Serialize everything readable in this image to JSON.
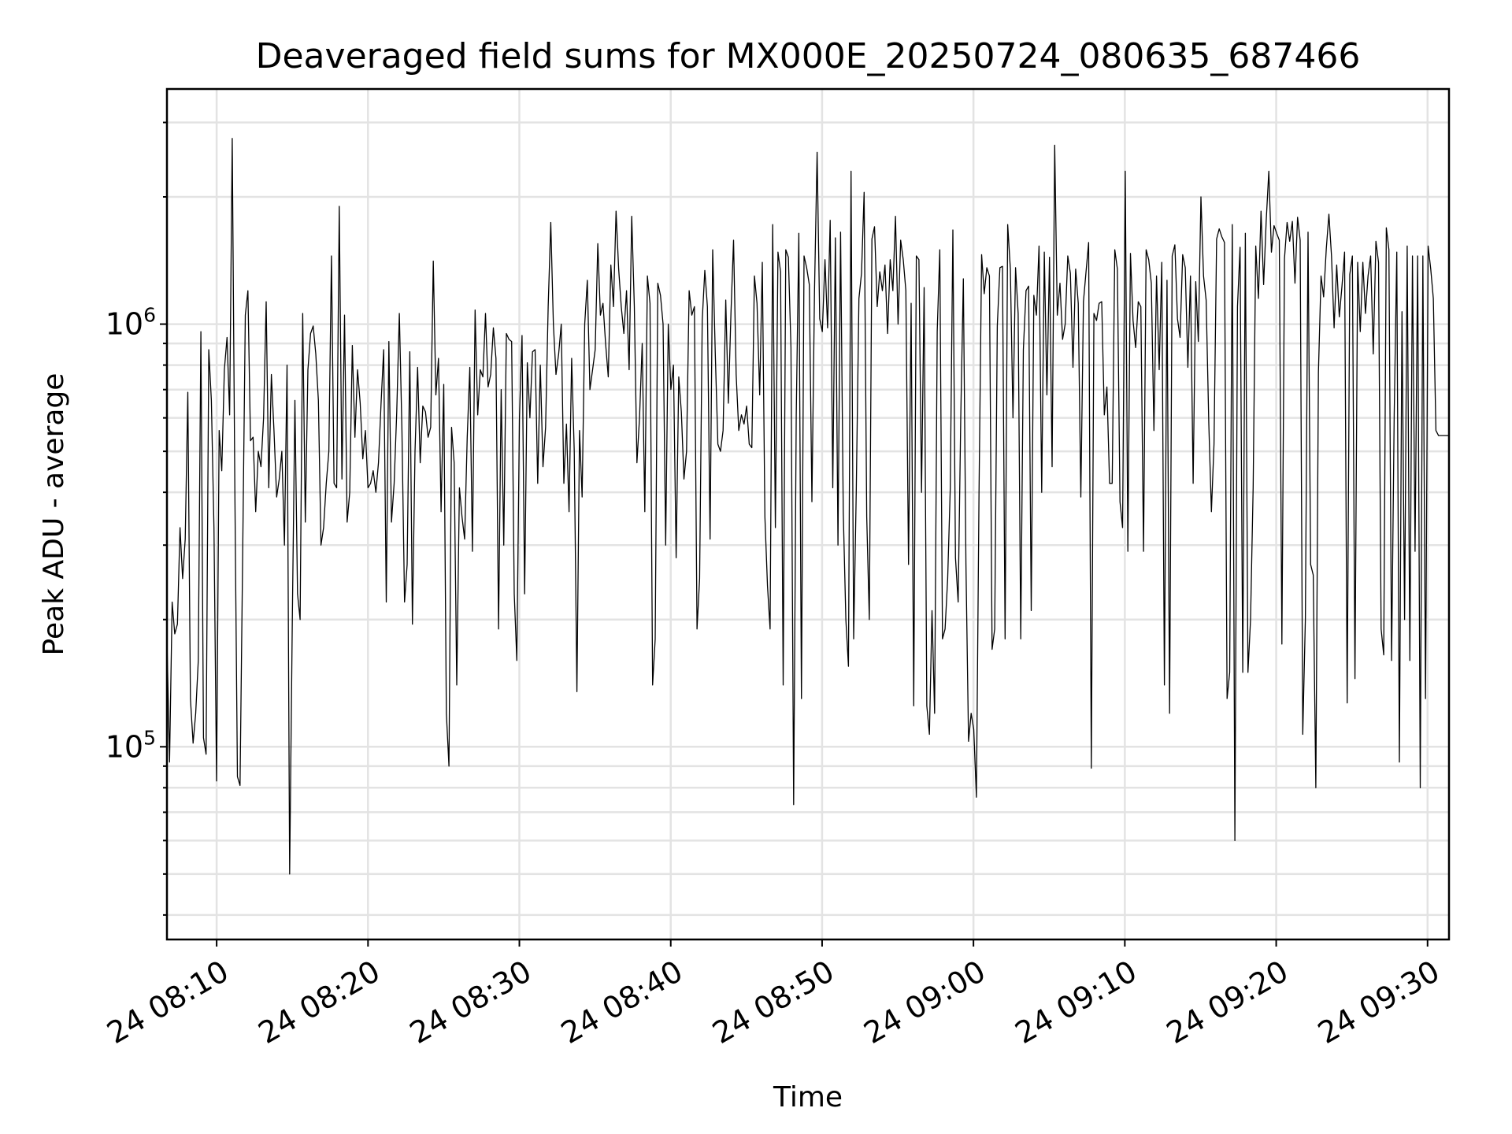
{
  "chart_data": {
    "type": "line",
    "title": "Deaveraged field sums for MX000E_20250724_080635_687466",
    "xlabel": "Time",
    "ylabel": "Peak ADU - average",
    "yscale": "log",
    "ylim": [
      35000,
      3600000
    ],
    "xlim": [
      "2025-07-24 08:06:43",
      "2025-07-24 09:31:25"
    ],
    "x_ticks": [
      {
        "t": "2025-07-24 08:10",
        "label": "24 08:10"
      },
      {
        "t": "2025-07-24 08:20",
        "label": "24 08:20"
      },
      {
        "t": "2025-07-24 08:30",
        "label": "24 08:30"
      },
      {
        "t": "2025-07-24 08:40",
        "label": "24 08:40"
      },
      {
        "t": "2025-07-24 08:50",
        "label": "24 08:50"
      },
      {
        "t": "2025-07-24 09:00",
        "label": "24 09:00"
      },
      {
        "t": "2025-07-24 09:10",
        "label": "24 09:10"
      },
      {
        "t": "2025-07-24 09:20",
        "label": "24 09:20"
      },
      {
        "t": "2025-07-24 09:30",
        "label": "24 09:30"
      }
    ],
    "y_ticks": [
      {
        "value": 100000,
        "base": "10",
        "exp": "5"
      },
      {
        "value": 1000000,
        "base": "10",
        "exp": "6"
      }
    ],
    "grid": true,
    "line_color": "#000000",
    "series": [
      {
        "x_start": "2025-07-24 08:06:43",
        "x_end": "2025-07-24 09:31:25",
        "values": [
          180000,
          92000,
          220000,
          185000,
          195000,
          330000,
          250000,
          310000,
          690000,
          130000,
          102000,
          120000,
          160000,
          960000,
          105000,
          96000,
          870000,
          660000,
          330000,
          83000,
          560000,
          450000,
          780000,
          930000,
          610000,
          2750000,
          410000,
          85000,
          81000,
          290000,
          1050000,
          1200000,
          530000,
          540000,
          360000,
          500000,
          460000,
          600000,
          1130000,
          410000,
          760000,
          560000,
          390000,
          430000,
          500000,
          300000,
          800000,
          50000,
          200000,
          660000,
          230000,
          200000,
          1060000,
          340000,
          780000,
          950000,
          990000,
          850000,
          660000,
          300000,
          330000,
          420000,
          500000,
          1450000,
          420000,
          410000,
          1900000,
          430000,
          1050000,
          340000,
          400000,
          890000,
          540000,
          780000,
          650000,
          480000,
          560000,
          410000,
          420000,
          450000,
          400000,
          470000,
          650000,
          870000,
          220000,
          910000,
          340000,
          420000,
          620000,
          1060000,
          560000,
          220000,
          270000,
          860000,
          195000,
          500000,
          790000,
          470000,
          640000,
          620000,
          540000,
          570000,
          1410000,
          680000,
          830000,
          360000,
          720000,
          120000,
          90000,
          570000,
          470000,
          140000,
          410000,
          350000,
          310000,
          540000,
          790000,
          290000,
          1080000,
          610000,
          780000,
          750000,
          1060000,
          710000,
          760000,
          980000,
          830000,
          190000,
          700000,
          300000,
          950000,
          920000,
          910000,
          230000,
          160000,
          600000,
          940000,
          230000,
          810000,
          600000,
          860000,
          870000,
          420000,
          800000,
          460000,
          570000,
          1100000,
          1740000,
          1000000,
          760000,
          850000,
          1000000,
          420000,
          580000,
          360000,
          830000,
          500000,
          135000,
          560000,
          390000,
          1000000,
          1270000,
          700000,
          780000,
          870000,
          1550000,
          1050000,
          1120000,
          900000,
          750000,
          1380000,
          1100000,
          1850000,
          1350000,
          1100000,
          950000,
          1200000,
          780000,
          1800000,
          1100000,
          470000,
          600000,
          900000,
          360000,
          1300000,
          1120000,
          140000,
          180000,
          1250000,
          1170000,
          1000000,
          300000,
          1000000,
          700000,
          800000,
          280000,
          750000,
          620000,
          430000,
          500000,
          1200000,
          1050000,
          1100000,
          190000,
          250000,
          1020000,
          1340000,
          1100000,
          310000,
          1500000,
          850000,
          520000,
          500000,
          560000,
          1140000,
          650000,
          1060000,
          1580000,
          760000,
          560000,
          610000,
          580000,
          640000,
          520000,
          510000,
          1300000,
          1120000,
          680000,
          1400000,
          350000,
          240000,
          190000,
          1720000,
          330000,
          1480000,
          1330000,
          140000,
          1500000,
          1440000,
          880000,
          73000,
          610000,
          1640000,
          130000,
          1450000,
          1360000,
          1240000,
          380000,
          1200000,
          2550000,
          1030000,
          960000,
          1420000,
          980000,
          1760000,
          410000,
          1600000,
          300000,
          1650000,
          360000,
          200000,
          155000,
          2300000,
          180000,
          400000,
          1150000,
          1320000,
          2050000,
          350000,
          200000,
          1590000,
          1700000,
          1100000,
          1330000,
          1200000,
          1380000,
          950000,
          1420000,
          1200000,
          1800000,
          1000000,
          1580000,
          1420000,
          1200000,
          270000,
          1120000,
          125000,
          1450000,
          1420000,
          400000,
          1220000,
          125000,
          107000,
          210000,
          120000,
          960000,
          1500000,
          180000,
          190000,
          250000,
          410000,
          1670000,
          280000,
          220000,
          600000,
          1280000,
          270000,
          103000,
          120000,
          110000,
          76000,
          400000,
          1460000,
          1180000,
          1360000,
          1300000,
          170000,
          190000,
          990000,
          1360000,
          1370000,
          180000,
          1720000,
          1350000,
          600000,
          1360000,
          1060000,
          180000,
          870000,
          1200000,
          1230000,
          210000,
          1170000,
          1050000,
          1530000,
          400000,
          1480000,
          680000,
          1440000,
          460000,
          2650000,
          1050000,
          1250000,
          920000,
          1000000,
          1450000,
          1320000,
          790000,
          1350000,
          1120000,
          390000,
          1130000,
          1330000,
          1560000,
          89000,
          1060000,
          1020000,
          1120000,
          1130000,
          610000,
          710000,
          420000,
          420000,
          1500000,
          1350000,
          380000,
          330000,
          2300000,
          290000,
          1470000,
          1020000,
          880000,
          1130000,
          1100000,
          290000,
          1500000,
          1420000,
          1250000,
          560000,
          1300000,
          780000,
          1400000,
          140000,
          1270000,
          120000,
          1450000,
          1540000,
          1030000,
          930000,
          1460000,
          1360000,
          790000,
          1300000,
          420000,
          1260000,
          910000,
          2000000,
          1300000,
          1140000,
          580000,
          360000,
          520000,
          1590000,
          1680000,
          1610000,
          1560000,
          130000,
          150000,
          1720000,
          60000,
          1100000,
          1520000,
          150000,
          1640000,
          150000,
          200000,
          410000,
          1530000,
          1150000,
          1850000,
          1240000,
          1760000,
          2300000,
          1480000,
          1710000,
          1640000,
          1580000,
          175000,
          1430000,
          1740000,
          1570000,
          1750000,
          1250000,
          1790000,
          1580000,
          107000,
          200000,
          1650000,
          270000,
          255000,
          80000,
          770000,
          1300000,
          1160000,
          1510000,
          1820000,
          1450000,
          980000,
          1380000,
          1040000,
          1230000,
          1480000,
          127000,
          1310000,
          1450000,
          145000,
          1400000,
          960000,
          1400000,
          1060000,
          1300000,
          1450000,
          850000,
          1570000,
          1400000,
          190000,
          165000,
          1690000,
          1500000,
          160000,
          610000,
          1480000,
          92000,
          1070000,
          200000,
          1530000,
          160000,
          1450000,
          290000,
          1450000,
          80000,
          1450000,
          130000,
          1530000,
          1350000,
          1150000,
          560000,
          545000,
          545000,
          545000,
          545000,
          545000
        ]
      }
    ]
  }
}
